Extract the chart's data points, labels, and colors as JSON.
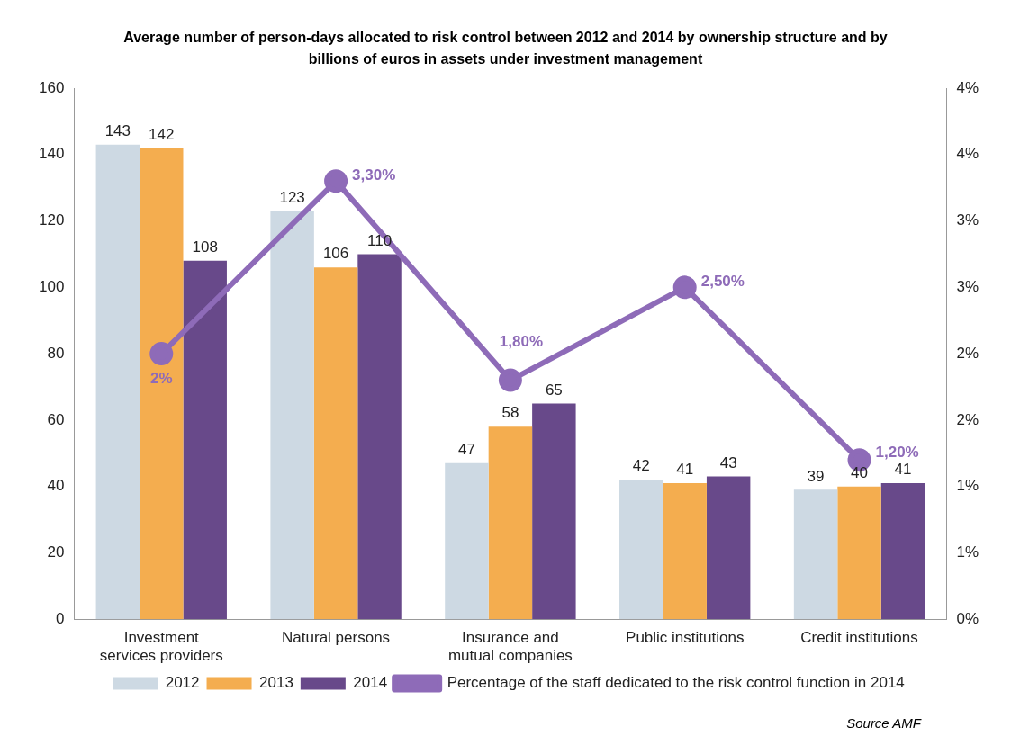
{
  "chart_data": {
    "type": "bar",
    "title": "Average number of person-days allocated to risk control between 2012 and 2014 by ownership structure and by billions of euros in assets under investment management",
    "categories": [
      "Investment services providers",
      "Natural persons",
      "Insurance and mutual companies",
      "Public institutions",
      "Credit institutions"
    ],
    "series": [
      {
        "name": "2012",
        "color": "#cdd9e3",
        "values": [
          143,
          123,
          47,
          42,
          39
        ]
      },
      {
        "name": "2013",
        "color": "#f4ad4f",
        "values": [
          142,
          106,
          58,
          41,
          40
        ]
      },
      {
        "name": "2014",
        "color": "#68498a",
        "values": [
          108,
          110,
          65,
          43,
          41
        ]
      },
      {
        "name": "Percentage of the staff dedicated to the risk control function in 2014",
        "type": "line",
        "axis": "y2",
        "color": "#8e6bb8",
        "values": [
          2,
          3.3,
          1.8,
          2.5,
          1.2
        ],
        "value_labels": [
          "2%",
          "3,30%",
          "1,80%",
          "2,50%",
          "1,20%"
        ]
      }
    ],
    "ylim": [
      0,
      160
    ],
    "yticks": [
      0,
      20,
      40,
      60,
      80,
      100,
      120,
      140,
      160
    ],
    "y2lim": [
      0,
      4
    ],
    "y2ticks": [
      {
        "value": 0,
        "label": "0%"
      },
      {
        "value": 0.5,
        "label": "1%"
      },
      {
        "value": 1,
        "label": "1%"
      },
      {
        "value": 1.5,
        "label": "2%"
      },
      {
        "value": 2,
        "label": "2%"
      },
      {
        "value": 2.5,
        "label": "3%"
      },
      {
        "value": 3,
        "label": "3%"
      },
      {
        "value": 3.5,
        "label": "4%"
      },
      {
        "value": 4,
        "label": "4%"
      }
    ],
    "data_labels": true,
    "grid": false,
    "legend": "bottom",
    "marker": "circle",
    "line_style": "solid",
    "annotations": [
      "Source AMF"
    ]
  }
}
